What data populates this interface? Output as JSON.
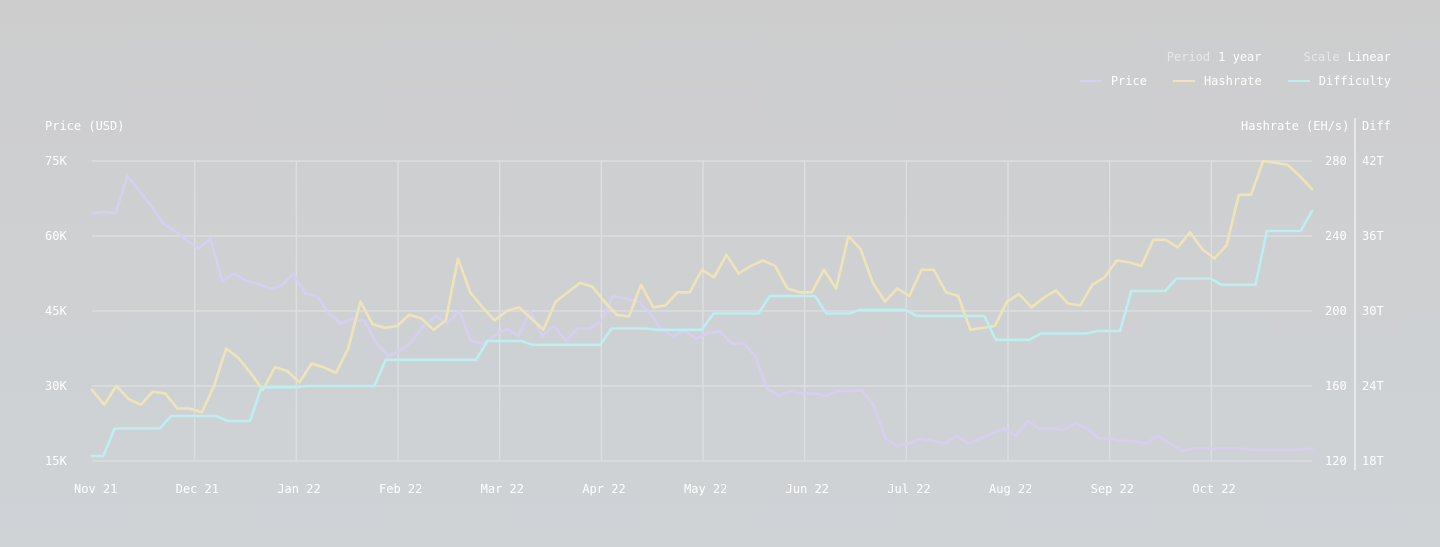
{
  "controls": {
    "period_label": "Period",
    "period_value": "1 year",
    "scale_label": "Scale",
    "scale_value": "Linear"
  },
  "colors": {
    "price": "#d7cff0",
    "hashrate": "#efe4b8",
    "difficulty": "#bdeef0",
    "grid": "#dcdee0"
  },
  "chart_data": {
    "type": "line",
    "title": "",
    "legend_position": "top-right",
    "grid": true,
    "x_labels": [
      "Nov 21",
      "Dec 21",
      "Jan 22",
      "Feb 22",
      "Mar 22",
      "Apr 22",
      "May 22",
      "Jun 22",
      "Jul 22",
      "Aug 22",
      "Sep 22",
      "Oct 22"
    ],
    "axes": {
      "left": {
        "label": "Price (USD)",
        "ticks": [
          "75K",
          "60K",
          "45K",
          "30K",
          "15K"
        ],
        "range": [
          15000,
          75000
        ]
      },
      "right1": {
        "label": "Hashrate (EH/s)",
        "ticks": [
          "280",
          "240",
          "200",
          "160",
          "120"
        ],
        "range": [
          120,
          280
        ]
      },
      "right2": {
        "label": "Diff",
        "ticks": [
          "42T",
          "36T",
          "30T",
          "24T",
          "18T"
        ],
        "range": [
          18,
          42
        ]
      }
    },
    "series": [
      {
        "name": "Price",
        "axis": "left",
        "unit": "USD",
        "values": [
          64500,
          64800,
          64600,
          72000,
          69000,
          66000,
          62500,
          61000,
          59000,
          57500,
          59500,
          51000,
          52500,
          51000,
          50500,
          49500,
          50000,
          52500,
          48500,
          48000,
          44500,
          42500,
          43500,
          43000,
          38500,
          36000,
          37000,
          39000,
          42000,
          44000,
          42500,
          45000,
          39000,
          38500,
          40000,
          41500,
          40000,
          45000,
          40000,
          42000,
          39000,
          41500,
          41500,
          43000,
          48000,
          47500,
          47000,
          45000,
          41500,
          40000,
          41000,
          39500,
          40500,
          41000,
          38500,
          38500,
          36000,
          29500,
          28000,
          29000,
          28500,
          28500,
          28000,
          29000,
          29000,
          29200,
          26000,
          19500,
          18000,
          18500,
          19500,
          19000,
          18500,
          20000,
          18500,
          19500,
          20500,
          21500,
          20000,
          23000,
          21500,
          21500,
          21200,
          22500,
          21500,
          19500,
          19500,
          19000,
          19000,
          18500,
          20000,
          18500,
          17000,
          17500,
          17500,
          17500,
          17500,
          17500,
          17200,
          17200,
          17200,
          17200,
          17300,
          17500
        ]
      },
      {
        "name": "Hashrate",
        "axis": "right1",
        "unit": "EH/s",
        "values": [
          158,
          150,
          160,
          153,
          150,
          157,
          156,
          148,
          148,
          146,
          160,
          180,
          175,
          167,
          158,
          170,
          168,
          162,
          172,
          170,
          167,
          180,
          205,
          193,
          191,
          192,
          198,
          196,
          190,
          195,
          228,
          210,
          202,
          195,
          200,
          202,
          196,
          190,
          205,
          210,
          215,
          213,
          205,
          198,
          197,
          214,
          202,
          203,
          210,
          210,
          222,
          218,
          230,
          220,
          224,
          227,
          224,
          212,
          210,
          210,
          222,
          212,
          240,
          233,
          215,
          205,
          212,
          208,
          222,
          222,
          210,
          208,
          190,
          191,
          192,
          205,
          209,
          202,
          207,
          211,
          204,
          203,
          214,
          218,
          227,
          226,
          224,
          238,
          238,
          234,
          242,
          233,
          228,
          235,
          262,
          262,
          280,
          279,
          278,
          272,
          265
        ]
      },
      {
        "name": "Difficulty",
        "axis": "right2",
        "unit": "T",
        "values": [
          18.4,
          18.4,
          20.6,
          20.6,
          20.6,
          20.6,
          20.6,
          21.6,
          21.6,
          21.6,
          21.6,
          21.6,
          21.2,
          21.2,
          21.2,
          23.9,
          23.9,
          23.9,
          23.9,
          24.0,
          24.0,
          24.0,
          24.0,
          24.0,
          24.0,
          24.0,
          26.1,
          26.1,
          26.1,
          26.1,
          26.1,
          26.1,
          26.1,
          26.1,
          26.1,
          27.6,
          27.6,
          27.6,
          27.6,
          27.3,
          27.3,
          27.3,
          27.3,
          27.3,
          27.3,
          27.3,
          28.6,
          28.6,
          28.6,
          28.6,
          28.5,
          28.5,
          28.5,
          28.5,
          28.5,
          29.8,
          29.8,
          29.8,
          29.8,
          29.8,
          31.2,
          31.2,
          31.2,
          31.2,
          31.2,
          29.8,
          29.8,
          29.8,
          30.1,
          30.1,
          30.1,
          30.1,
          30.1,
          29.6,
          29.6,
          29.6,
          29.6,
          29.6,
          29.6,
          29.6,
          27.7,
          27.7,
          27.7,
          27.7,
          28.2,
          28.2,
          28.2,
          28.2,
          28.2,
          28.4,
          28.4,
          28.4,
          31.6,
          31.6,
          31.6,
          31.6,
          32.6,
          32.6,
          32.6,
          32.6,
          32.1,
          32.1,
          32.1,
          32.1,
          36.4,
          36.4,
          36.4,
          36.4,
          38.0
        ]
      }
    ]
  }
}
